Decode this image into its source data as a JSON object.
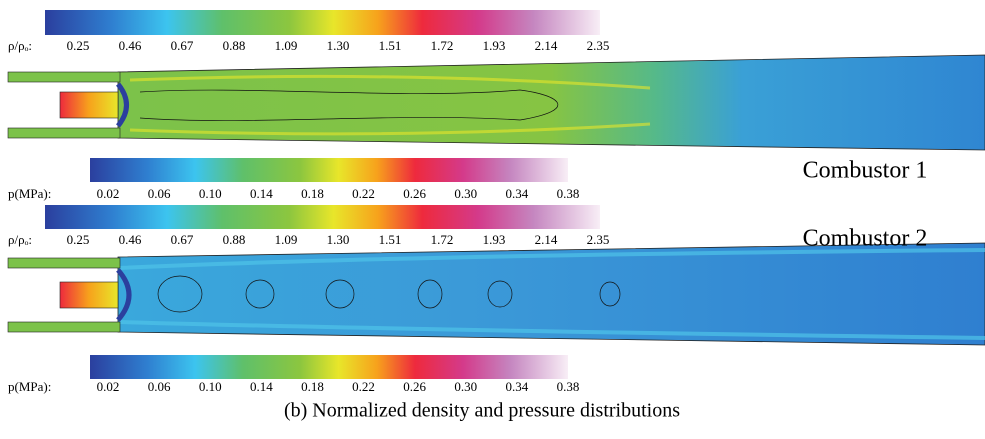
{
  "colorbars": [
    {
      "label": "ρ/ρₒ:",
      "ticks": [
        "0.25",
        "0.46",
        "0.67",
        "0.88",
        "1.09",
        "1.30",
        "1.51",
        "1.72",
        "1.93",
        "2.14",
        "2.35"
      ]
    },
    {
      "label": "p(MPa):",
      "ticks": [
        "0.02",
        "0.06",
        "0.10",
        "0.14",
        "0.18",
        "0.22",
        "0.26",
        "0.30",
        "0.34",
        "0.38"
      ]
    },
    {
      "label": "ρ/ρₒ:",
      "ticks": [
        "0.25",
        "0.46",
        "0.67",
        "0.88",
        "1.09",
        "1.30",
        "1.51",
        "1.72",
        "1.93",
        "2.14",
        "2.35"
      ]
    },
    {
      "label": "p(MPa):",
      "ticks": [
        "0.02",
        "0.06",
        "0.10",
        "0.14",
        "0.18",
        "0.22",
        "0.26",
        "0.30",
        "0.34",
        "0.38"
      ]
    }
  ],
  "panels": [
    "Combustor 1",
    "Combustor 2"
  ],
  "caption": "(b)  Normalized density and pressure distributions"
}
